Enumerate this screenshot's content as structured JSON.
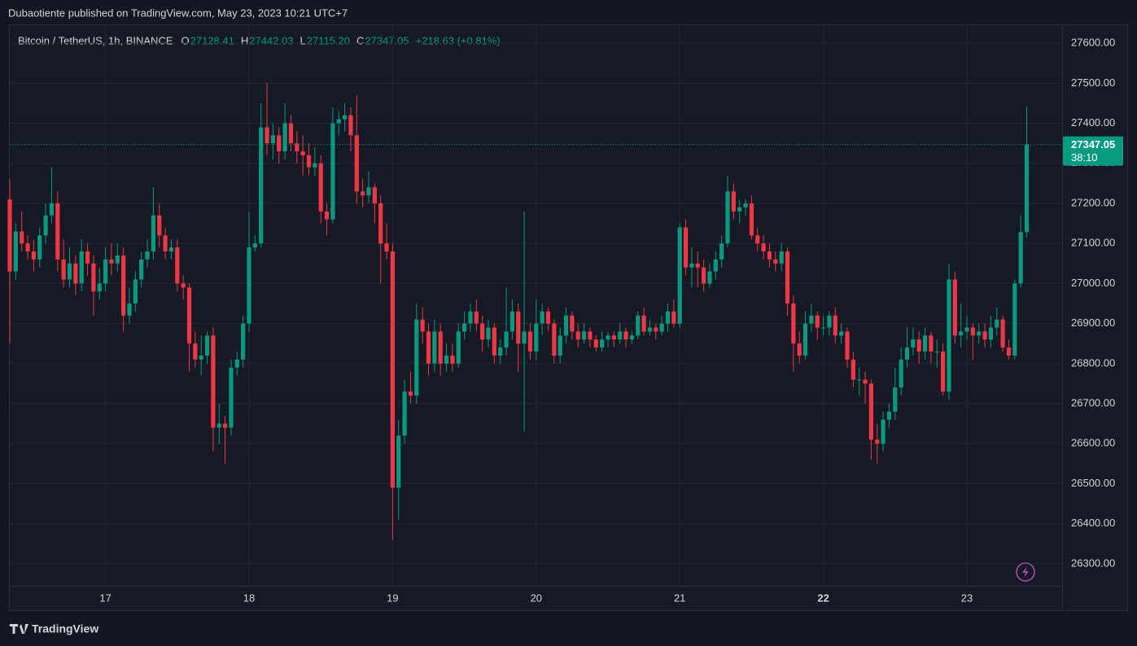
{
  "header": "Dubaotiente published on TradingView.com, May 23, 2023 10:21 UTC+7",
  "footer": "TradingView",
  "chart_data": {
    "type": "candlestick",
    "legend": {
      "symbol": "Bitcoin / TetherUS, 1h, BINANCE",
      "fields": [
        {
          "key": "O",
          "value": "27128.41"
        },
        {
          "key": "H",
          "value": "27442.03"
        },
        {
          "key": "L",
          "value": "27115.20"
        },
        {
          "key": "C",
          "value": "27347.05"
        }
      ],
      "change": "+218.63 (+0.81%)"
    },
    "price_tag": {
      "price": "27347.05",
      "countdown": "38:10"
    },
    "up_color": "#089981",
    "down_color": "#f23645",
    "grid": true,
    "ylim": [
      26184,
      27647
    ],
    "yticks": [
      {
        "value": 26300,
        "label": "26300.00"
      },
      {
        "value": 26400,
        "label": "26400.00"
      },
      {
        "value": 26500,
        "label": "26500.00"
      },
      {
        "value": 26600,
        "label": "26600.00"
      },
      {
        "value": 26700,
        "label": "26700.00"
      },
      {
        "value": 26800,
        "label": "26800.00"
      },
      {
        "value": 26900,
        "label": "26900.00"
      },
      {
        "value": 27000,
        "label": "27000.00"
      },
      {
        "value": 27100,
        "label": "27100.00"
      },
      {
        "value": 27200,
        "label": "27200.00"
      },
      {
        "value": 27300,
        "label": "27300.00"
      },
      {
        "value": 27400,
        "label": "27400.00"
      },
      {
        "value": 27500,
        "label": "27500.00"
      },
      {
        "value": 27600,
        "label": "27600.00"
      }
    ],
    "bold_category": "22",
    "categories": [
      null,
      null,
      null,
      null,
      null,
      null,
      null,
      null,
      null,
      null,
      null,
      null,
      null,
      null,
      null,
      null,
      "17",
      null,
      null,
      null,
      null,
      null,
      null,
      null,
      null,
      null,
      null,
      null,
      null,
      null,
      null,
      null,
      null,
      null,
      null,
      null,
      null,
      null,
      null,
      null,
      "18",
      null,
      null,
      null,
      null,
      null,
      null,
      null,
      null,
      null,
      null,
      null,
      null,
      null,
      null,
      null,
      null,
      null,
      null,
      null,
      null,
      null,
      null,
      null,
      "19",
      null,
      null,
      null,
      null,
      null,
      null,
      null,
      null,
      null,
      null,
      null,
      null,
      null,
      null,
      null,
      null,
      null,
      null,
      null,
      null,
      null,
      null,
      null,
      "20",
      null,
      null,
      null,
      null,
      null,
      null,
      null,
      null,
      null,
      null,
      null,
      null,
      null,
      null,
      null,
      null,
      null,
      null,
      null,
      null,
      null,
      null,
      null,
      "21",
      null,
      null,
      null,
      null,
      null,
      null,
      null,
      null,
      null,
      null,
      null,
      null,
      null,
      null,
      null,
      null,
      null,
      null,
      null,
      null,
      null,
      null,
      null,
      "22",
      null,
      null,
      null,
      null,
      null,
      null,
      null,
      null,
      null,
      null,
      null,
      null,
      null,
      null,
      null,
      null,
      null,
      null,
      null,
      null,
      null,
      null,
      null,
      "23",
      null,
      null,
      null,
      null,
      null,
      null,
      null,
      null,
      null,
      null
    ],
    "candles": [
      [
        27210,
        27260,
        26850,
        27030
      ],
      [
        27030,
        27150,
        27010,
        27130
      ],
      [
        27130,
        27180,
        27080,
        27100
      ],
      [
        27100,
        27120,
        27060,
        27080
      ],
      [
        27080,
        27110,
        27030,
        27060
      ],
      [
        27060,
        27140,
        27040,
        27120
      ],
      [
        27120,
        27200,
        27100,
        27170
      ],
      [
        27170,
        27290,
        27150,
        27200
      ],
      [
        27200,
        27230,
        27030,
        27060
      ],
      [
        27060,
        27110,
        26990,
        27010
      ],
      [
        27010,
        27090,
        26990,
        27050
      ],
      [
        27050,
        27070,
        26970,
        27000
      ],
      [
        27000,
        27110,
        26980,
        27080
      ],
      [
        27080,
        27100,
        27020,
        27050
      ],
      [
        27050,
        27070,
        26920,
        26980
      ],
      [
        26980,
        27040,
        26960,
        27000
      ],
      [
        27000,
        27090,
        26980,
        27060
      ],
      [
        27060,
        27100,
        27020,
        27050
      ],
      [
        27050,
        27100,
        27030,
        27070
      ],
      [
        27070,
        27090,
        26880,
        26920
      ],
      [
        26920,
        26990,
        26900,
        26950
      ],
      [
        26950,
        27030,
        26930,
        27010
      ],
      [
        27010,
        27080,
        26990,
        27060
      ],
      [
        27060,
        27110,
        27040,
        27080
      ],
      [
        27080,
        27240,
        27060,
        27170
      ],
      [
        27170,
        27200,
        27090,
        27120
      ],
      [
        27120,
        27140,
        27060,
        27080
      ],
      [
        27080,
        27110,
        27060,
        27090
      ],
      [
        27090,
        27110,
        26980,
        27000
      ],
      [
        27000,
        27020,
        26960,
        26990
      ],
      [
        26990,
        27000,
        26780,
        26850
      ],
      [
        26850,
        26880,
        26790,
        26810
      ],
      [
        26810,
        26870,
        26770,
        26820
      ],
      [
        26820,
        26880,
        26800,
        26870
      ],
      [
        26870,
        26890,
        26580,
        26640
      ],
      [
        26640,
        26700,
        26600,
        26650
      ],
      [
        26650,
        26670,
        26550,
        26640
      ],
      [
        26640,
        26810,
        26620,
        26790
      ],
      [
        26790,
        26830,
        26770,
        26810
      ],
      [
        26810,
        26920,
        26790,
        26900
      ],
      [
        26900,
        27180,
        26880,
        27090
      ],
      [
        27090,
        27120,
        27080,
        27100
      ],
      [
        27100,
        27450,
        27090,
        27390
      ],
      [
        27390,
        27500,
        27320,
        27350
      ],
      [
        27350,
        27400,
        27310,
        27370
      ],
      [
        27370,
        27390,
        27300,
        27330
      ],
      [
        27330,
        27450,
        27310,
        27400
      ],
      [
        27400,
        27420,
        27330,
        27350
      ],
      [
        27350,
        27380,
        27300,
        27330
      ],
      [
        27330,
        27370,
        27270,
        27320
      ],
      [
        27320,
        27350,
        27270,
        27290
      ],
      [
        27290,
        27340,
        27270,
        27300
      ],
      [
        27300,
        27320,
        27150,
        27180
      ],
      [
        27180,
        27200,
        27120,
        27160
      ],
      [
        27160,
        27440,
        27150,
        27400
      ],
      [
        27400,
        27430,
        27370,
        27410
      ],
      [
        27410,
        27450,
        27380,
        27420
      ],
      [
        27420,
        27440,
        27330,
        27370
      ],
      [
        27370,
        27470,
        27200,
        27230
      ],
      [
        27230,
        27260,
        27190,
        27220
      ],
      [
        27220,
        27280,
        27200,
        27240
      ],
      [
        27240,
        27250,
        27150,
        27200
      ],
      [
        27200,
        27220,
        27000,
        27100
      ],
      [
        27100,
        27150,
        27060,
        27080
      ],
      [
        27080,
        27100,
        26360,
        26490
      ],
      [
        26490,
        26660,
        26410,
        26620
      ],
      [
        26620,
        26760,
        26600,
        26730
      ],
      [
        26730,
        26780,
        26700,
        26720
      ],
      [
        26720,
        26950,
        26700,
        26910
      ],
      [
        26910,
        26940,
        26850,
        26880
      ],
      [
        26880,
        26900,
        26770,
        26800
      ],
      [
        26800,
        26910,
        26780,
        26880
      ],
      [
        26880,
        26900,
        26770,
        26800
      ],
      [
        26800,
        26850,
        26780,
        26820
      ],
      [
        26820,
        26850,
        26780,
        26800
      ],
      [
        26800,
        26900,
        26790,
        26880
      ],
      [
        26880,
        26930,
        26860,
        26900
      ],
      [
        26900,
        26950,
        26880,
        26930
      ],
      [
        26930,
        26960,
        26880,
        26900
      ],
      [
        26900,
        26920,
        26830,
        26860
      ],
      [
        26860,
        26910,
        26840,
        26890
      ],
      [
        26890,
        26900,
        26800,
        26820
      ],
      [
        26820,
        26860,
        26800,
        26840
      ],
      [
        26840,
        26990,
        26820,
        26880
      ],
      [
        26880,
        26960,
        26860,
        26930
      ],
      [
        26930,
        26950,
        26780,
        26850
      ],
      [
        26850,
        27180,
        26630,
        26880
      ],
      [
        26880,
        26900,
        26810,
        26830
      ],
      [
        26830,
        26960,
        26810,
        26900
      ],
      [
        26900,
        26950,
        26870,
        26930
      ],
      [
        26930,
        26940,
        26880,
        26900
      ],
      [
        26900,
        26910,
        26800,
        26820
      ],
      [
        26820,
        26890,
        26800,
        26870
      ],
      [
        26870,
        26940,
        26850,
        26920
      ],
      [
        26920,
        26930,
        26860,
        26880
      ],
      [
        26880,
        26900,
        26840,
        26860
      ],
      [
        26860,
        26900,
        26850,
        26880
      ],
      [
        26880,
        26890,
        26840,
        26860
      ],
      [
        26860,
        26870,
        26830,
        26840
      ],
      [
        26840,
        26880,
        26830,
        26860
      ],
      [
        26860,
        26880,
        26840,
        26870
      ],
      [
        26870,
        26880,
        26840,
        26860
      ],
      [
        26860,
        26900,
        26850,
        26880
      ],
      [
        26880,
        26890,
        26840,
        26860
      ],
      [
        26860,
        26880,
        26850,
        26870
      ],
      [
        26870,
        26930,
        26860,
        26920
      ],
      [
        26920,
        26940,
        26870,
        26880
      ],
      [
        26880,
        26910,
        26870,
        26890
      ],
      [
        26890,
        26900,
        26860,
        26880
      ],
      [
        26880,
        26920,
        26870,
        26900
      ],
      [
        26900,
        26950,
        26880,
        26930
      ],
      [
        26930,
        26960,
        26890,
        26900
      ],
      [
        26900,
        27150,
        26890,
        27140
      ],
      [
        27140,
        27160,
        27020,
        27040
      ],
      [
        27040,
        27090,
        26990,
        27050
      ],
      [
        27050,
        27080,
        26990,
        27040
      ],
      [
        27040,
        27060,
        26980,
        27000
      ],
      [
        27000,
        27050,
        26990,
        27030
      ],
      [
        27030,
        27080,
        27010,
        27060
      ],
      [
        27060,
        27120,
        27040,
        27100
      ],
      [
        27100,
        27270,
        27090,
        27230
      ],
      [
        27230,
        27250,
        27160,
        27180
      ],
      [
        27180,
        27210,
        27150,
        27190
      ],
      [
        27190,
        27210,
        27170,
        27200
      ],
      [
        27200,
        27220,
        27110,
        27120
      ],
      [
        27120,
        27140,
        27080,
        27100
      ],
      [
        27100,
        27120,
        27060,
        27080
      ],
      [
        27080,
        27100,
        27040,
        27060
      ],
      [
        27060,
        27080,
        27030,
        27050
      ],
      [
        27050,
        27100,
        27030,
        27080
      ],
      [
        27080,
        27090,
        26920,
        26950
      ],
      [
        26950,
        26970,
        26780,
        26850
      ],
      [
        26850,
        26880,
        26800,
        26820
      ],
      [
        26820,
        26930,
        26810,
        26900
      ],
      [
        26900,
        26950,
        26880,
        26920
      ],
      [
        26920,
        26930,
        26860,
        26890
      ],
      [
        26890,
        26920,
        26870,
        26890
      ],
      [
        26890,
        26930,
        26870,
        26920
      ],
      [
        26920,
        26940,
        26850,
        26870
      ],
      [
        26870,
        26900,
        26850,
        26880
      ],
      [
        26880,
        26890,
        26790,
        26810
      ],
      [
        26810,
        26830,
        26740,
        26760
      ],
      [
        26760,
        26790,
        26720,
        26760
      ],
      [
        26760,
        26780,
        26700,
        26750
      ],
      [
        26750,
        26760,
        26560,
        26610
      ],
      [
        26610,
        26650,
        26550,
        26600
      ],
      [
        26600,
        26680,
        26580,
        26660
      ],
      [
        26660,
        26700,
        26640,
        26680
      ],
      [
        26680,
        26790,
        26660,
        26740
      ],
      [
        26740,
        26840,
        26720,
        26810
      ],
      [
        26810,
        26890,
        26790,
        26840
      ],
      [
        26840,
        26890,
        26820,
        26860
      ],
      [
        26860,
        26880,
        26800,
        26830
      ],
      [
        26830,
        26890,
        26810,
        26870
      ],
      [
        26870,
        26880,
        26800,
        26830
      ],
      [
        26830,
        26860,
        26790,
        26830
      ],
      [
        26830,
        26850,
        26720,
        26730
      ],
      [
        26730,
        27050,
        26710,
        27010
      ],
      [
        27010,
        27030,
        26850,
        26870
      ],
      [
        26870,
        26950,
        26840,
        26880
      ],
      [
        26880,
        26920,
        26860,
        26890
      ],
      [
        26890,
        26900,
        26810,
        26870
      ],
      [
        26870,
        26900,
        26850,
        26880
      ],
      [
        26880,
        26900,
        26840,
        26860
      ],
      [
        26860,
        26920,
        26840,
        26890
      ],
      [
        26890,
        26940,
        26870,
        26910
      ],
      [
        26910,
        26920,
        26830,
        26840
      ],
      [
        26840,
        26860,
        26810,
        26820
      ],
      [
        26820,
        27010,
        26810,
        27000
      ],
      [
        27000,
        27170,
        26990,
        27128.41
      ],
      [
        27128.41,
        27442.03,
        27115.2,
        27347.05
      ]
    ]
  }
}
